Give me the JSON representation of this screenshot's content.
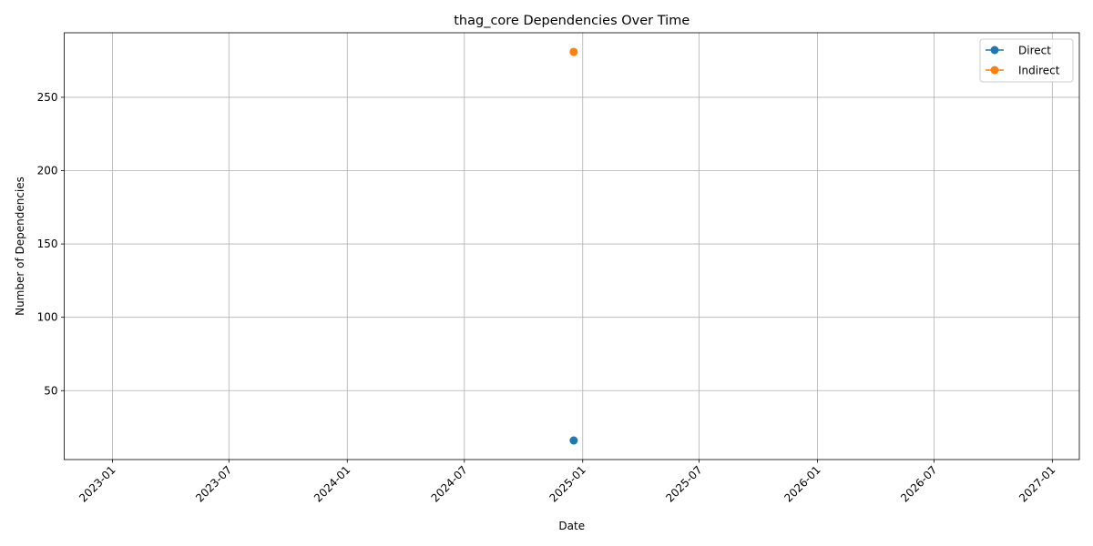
{
  "chart_data": {
    "type": "line",
    "title": "thag_core Dependencies Over Time",
    "xlabel": "Date",
    "ylabel": "Number of Dependencies",
    "x_range": [
      "2022-10-18",
      "2027-02-12"
    ],
    "ylim": [
      3,
      294
    ],
    "x_ticks": [
      "2023-01",
      "2023-07",
      "2024-01",
      "2024-07",
      "2025-01",
      "2025-07",
      "2026-01",
      "2026-07",
      "2027-01"
    ],
    "y_ticks": [
      50,
      100,
      150,
      200,
      250
    ],
    "grid": true,
    "legend_position": "top-right",
    "series": [
      {
        "name": "Direct",
        "color": "#1f77b4",
        "x": [
          "2024-12-18"
        ],
        "y": [
          16
        ]
      },
      {
        "name": "Indirect",
        "color": "#ff7f0e",
        "x": [
          "2024-12-18"
        ],
        "y": [
          281
        ]
      }
    ]
  }
}
